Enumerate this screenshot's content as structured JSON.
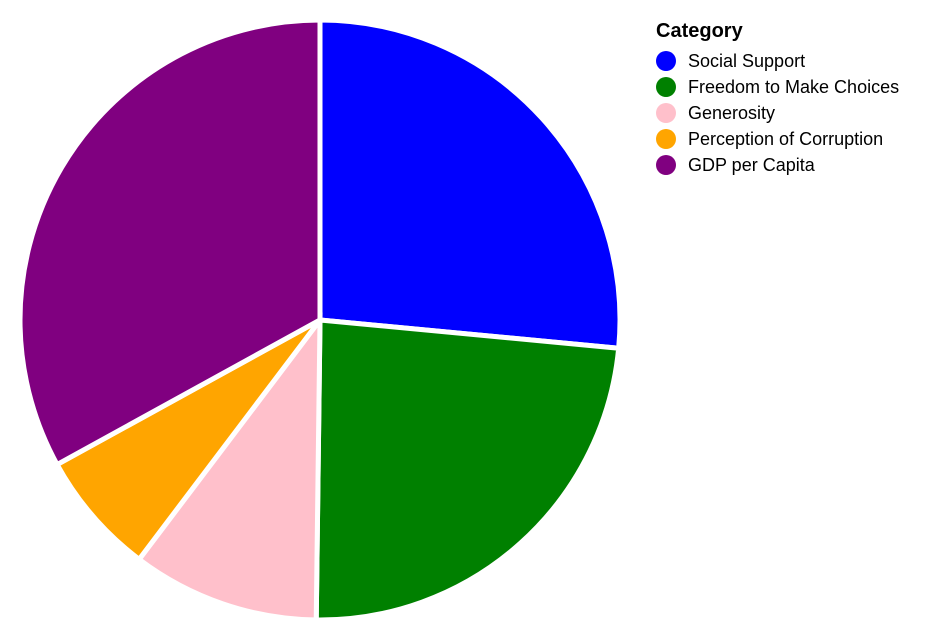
{
  "chart_data": {
    "type": "pie",
    "title": "",
    "categories": [
      "Social Support",
      "Freedom to Make Choices",
      "Generosity",
      "Perception of Corruption",
      "GDP per Capita"
    ],
    "values": [
      26.5,
      23.7,
      10.1,
      6.7,
      33.0
    ],
    "colors": [
      "#0000ff",
      "#008000",
      "#ffc0cb",
      "#ffa500",
      "#800080"
    ],
    "start_angle_deg": 0,
    "direction": "clockwise",
    "legend": {
      "title": "Category",
      "placement": "top-right"
    }
  }
}
